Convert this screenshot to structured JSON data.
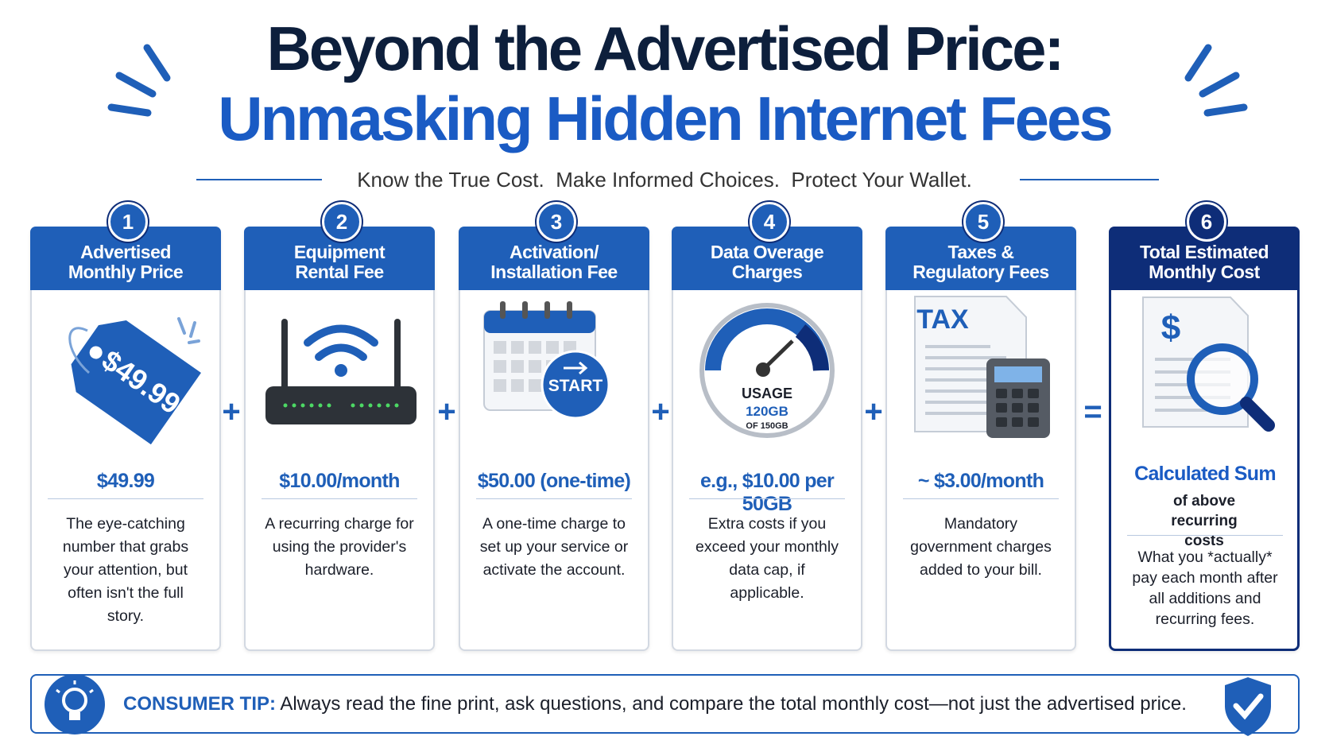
{
  "header": {
    "title_line1": "Beyond the Advertised Price:",
    "title_line2": "Unmasking Hidden Internet Fees",
    "subtitle": "Know the True Cost.  Make Informed Choices.  Protect Your Wallet."
  },
  "cards": [
    {
      "number": 1,
      "title": [
        "Advertised",
        "Monthly Price"
      ],
      "icon_text": [
        "$49.99"
      ],
      "price": "$49.99",
      "description": "The eye-catching number that grabs your attention, but often isn't the full story."
    },
    {
      "number": 2,
      "title": [
        "Equipment",
        "Rental Fee"
      ],
      "price": "$10.00/month",
      "description": "A recurring charge for using the provider's hardware."
    },
    {
      "number": 3,
      "title": [
        "Activation/",
        "Installation Fee"
      ],
      "icon_text": [
        "START"
      ],
      "price": "$50.00 (one-time)",
      "description": "A one-time charge to set up your service or activate the account."
    },
    {
      "number": 4,
      "title": [
        "Data Overage",
        "Charges"
      ],
      "icon_text": [
        "USAGE",
        "120GB",
        "OF 150GB"
      ],
      "price": "e.g., $10.00 per 50GB",
      "description": "Extra costs if you exceed your monthly data cap, if applicable."
    },
    {
      "number": 5,
      "title": [
        "Taxes &",
        "Regulatory Fees"
      ],
      "icon_text": [
        "TAX"
      ],
      "price": "~ $3.00/month",
      "description": "Mandatory government charges added to your bill."
    },
    {
      "number": 6,
      "title": [
        "Total Estimated",
        "Monthly Cost"
      ],
      "icon_text": [
        "$"
      ],
      "price": "Calculated Sum",
      "price_note": "of above recurring costs",
      "description": "What you *actually* pay each month after all additions and recurring fees."
    }
  ],
  "operators": [
    "+",
    "+",
    "+",
    "+",
    "="
  ],
  "tip": {
    "label": "CONSUMER TIP:",
    "text": "Always read the fine print, ask questions, and compare the total monthly cost—not just the advertised price."
  }
}
